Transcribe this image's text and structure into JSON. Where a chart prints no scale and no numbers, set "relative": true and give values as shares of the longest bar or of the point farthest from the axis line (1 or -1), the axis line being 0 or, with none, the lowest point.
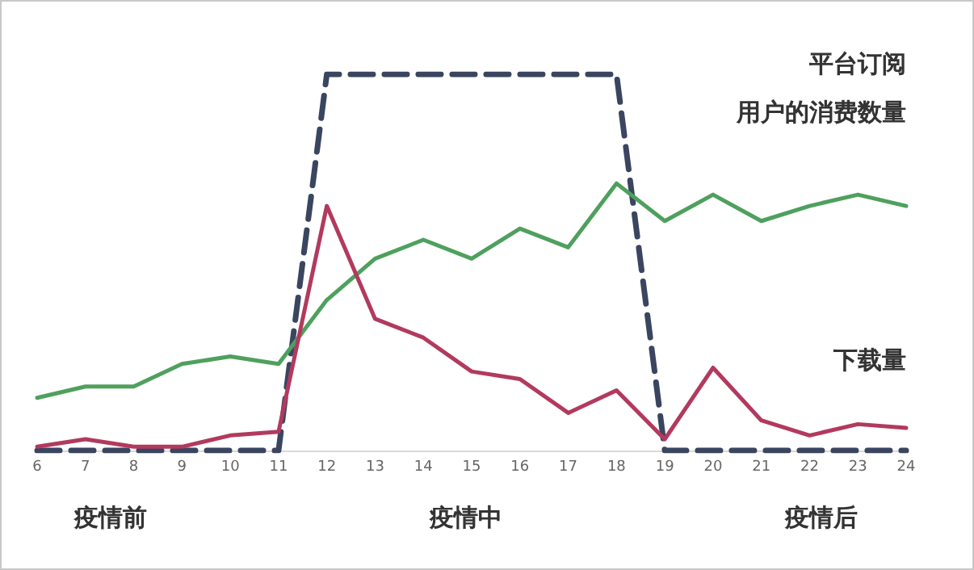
{
  "chart_data": {
    "type": "line",
    "relative": true,
    "x": [
      6,
      7,
      8,
      9,
      10,
      11,
      12,
      13,
      14,
      15,
      16,
      17,
      18,
      19,
      20,
      21,
      22,
      23,
      24
    ],
    "xlim": [
      6,
      24
    ],
    "xticks": [
      6,
      7,
      8,
      9,
      10,
      11,
      12,
      13,
      14,
      15,
      16,
      17,
      18,
      19,
      20,
      21,
      22,
      23,
      24
    ],
    "tick_labels": "x",
    "legend": false,
    "marker": "none",
    "series": [
      {
        "name": "平台订阅用户的消费数量",
        "color": "#4fa05e",
        "values": [
          0.14,
          0.17,
          0.17,
          0.23,
          0.25,
          0.23,
          0.4,
          0.51,
          0.56,
          0.51,
          0.59,
          0.54,
          0.71,
          0.61,
          0.68,
          0.61,
          0.65,
          0.68,
          0.65
        ]
      },
      {
        "name": "下载量",
        "color": "#b23a5e",
        "values": [
          0.01,
          0.03,
          0.01,
          0.01,
          0.04,
          0.05,
          0.65,
          0.35,
          0.3,
          0.21,
          0.19,
          0.1,
          0.16,
          0.03,
          0.22,
          0.08,
          0.04,
          0.07,
          0.06
        ]
      },
      {
        "color": "#3a4560",
        "line_style": "dashed",
        "values": [
          0,
          0,
          0,
          0,
          0,
          0,
          1,
          1,
          1,
          1,
          1,
          1,
          1,
          0,
          0,
          0,
          0,
          0,
          0
        ]
      }
    ],
    "annotations": [
      "疫情前",
      "疫情中",
      "疫情后"
    ]
  }
}
